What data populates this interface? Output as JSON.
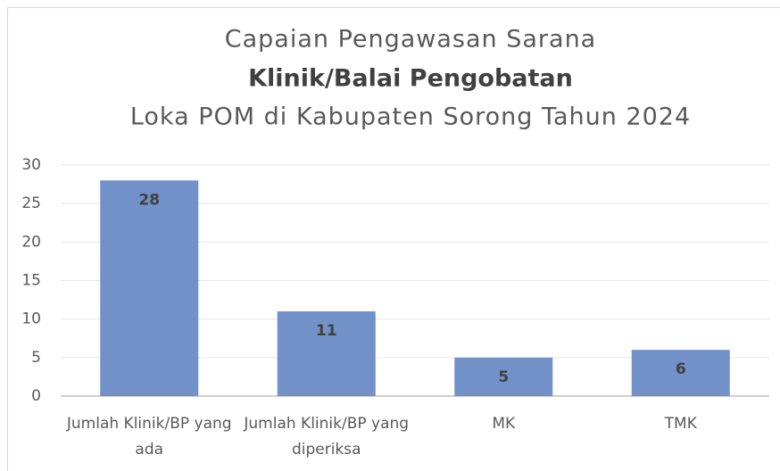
{
  "chart_data": {
    "type": "bar",
    "title": [
      "Capaian  Pengawasan Sarana",
      "Klinik/Balai Pengobatan",
      "Loka POM di Kabupaten Sorong Tahun 2024"
    ],
    "categories": [
      "Jumlah Klinik/BP yang ada",
      "Jumlah Klinik/BP yang diperiksa",
      "MK",
      "TMK"
    ],
    "values": [
      28,
      11,
      5,
      6
    ],
    "color": "#7191c8",
    "ylim": [
      0,
      30
    ],
    "yticks": [
      0,
      5,
      10,
      15,
      20,
      25,
      30
    ],
    "grid": true
  }
}
